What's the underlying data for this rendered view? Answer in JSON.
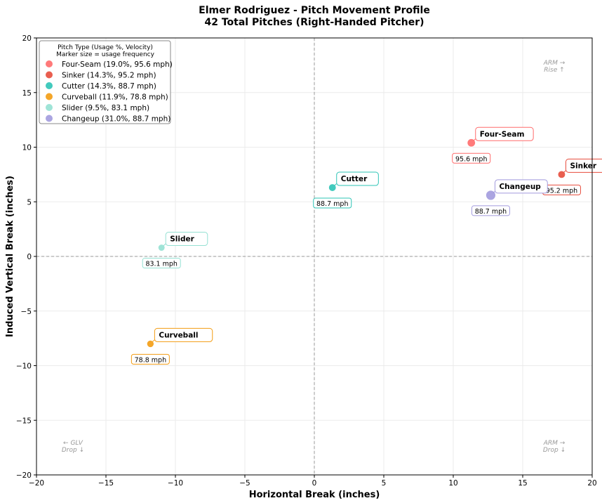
{
  "chart_data": {
    "type": "scatter",
    "title": "Elmer Rodriguez - Pitch Movement Profile",
    "subtitle": "42 Total Pitches (Right-Handed Pitcher)",
    "xlabel": "Horizontal Break (inches)",
    "ylabel": "Induced Vertical Break (inches)",
    "xlim": [
      -20,
      20
    ],
    "ylim": [
      -20,
      20
    ],
    "xticks": [
      -20,
      -15,
      -10,
      -5,
      0,
      5,
      10,
      15,
      20
    ],
    "yticks": [
      -20,
      -15,
      -10,
      -5,
      0,
      5,
      10,
      15,
      20
    ],
    "grid": true,
    "legend": {
      "position": "top-left",
      "title": "Pitch Type (Usage %, Velocity)",
      "subtitle": "Marker size = usage frequency"
    },
    "series": [
      {
        "name": "Four-Seam",
        "usage": 19.0,
        "velocity": 95.6,
        "x": 11.3,
        "y": 10.4,
        "color": "#ff6b6b",
        "legend": "Four-Seam (19.0%, 95.6 mph)",
        "vlabel": "95.6 mph"
      },
      {
        "name": "Sinker",
        "usage": 14.3,
        "velocity": 95.2,
        "x": 17.8,
        "y": 7.5,
        "color": "#e74c3c",
        "legend": "Sinker (14.3%, 95.2 mph)",
        "vlabel": "95.2 mph"
      },
      {
        "name": "Cutter",
        "usage": 14.3,
        "velocity": 88.7,
        "x": 1.3,
        "y": 6.3,
        "color": "#2ec4b6",
        "legend": "Cutter (14.3%, 88.7 mph)",
        "vlabel": "88.7 mph"
      },
      {
        "name": "Curveball",
        "usage": 11.9,
        "velocity": 78.8,
        "x": -11.8,
        "y": -8.0,
        "color": "#f39c12",
        "legend": "Curveball (11.9%, 78.8 mph)",
        "vlabel": "78.8 mph"
      },
      {
        "name": "Slider",
        "usage": 9.5,
        "velocity": 83.1,
        "x": -11.0,
        "y": 0.8,
        "color": "#95e1d3",
        "legend": "Slider (9.5%, 83.1 mph)",
        "vlabel": "83.1 mph"
      },
      {
        "name": "Changeup",
        "usage": 31.0,
        "velocity": 88.7,
        "x": 12.7,
        "y": 5.6,
        "color": "#a29bde",
        "legend": "Changeup (31.0%, 88.7 mph)",
        "vlabel": "88.7 mph"
      }
    ],
    "annotations": [
      {
        "line1": "ARM →",
        "line2": "Rise ↑",
        "corner": "top-right"
      },
      {
        "line1": "ARM →",
        "line2": "Drop ↓",
        "corner": "bottom-right"
      },
      {
        "line1": "← GLV",
        "line2": "Drop ↓",
        "corner": "bottom-left"
      }
    ]
  }
}
